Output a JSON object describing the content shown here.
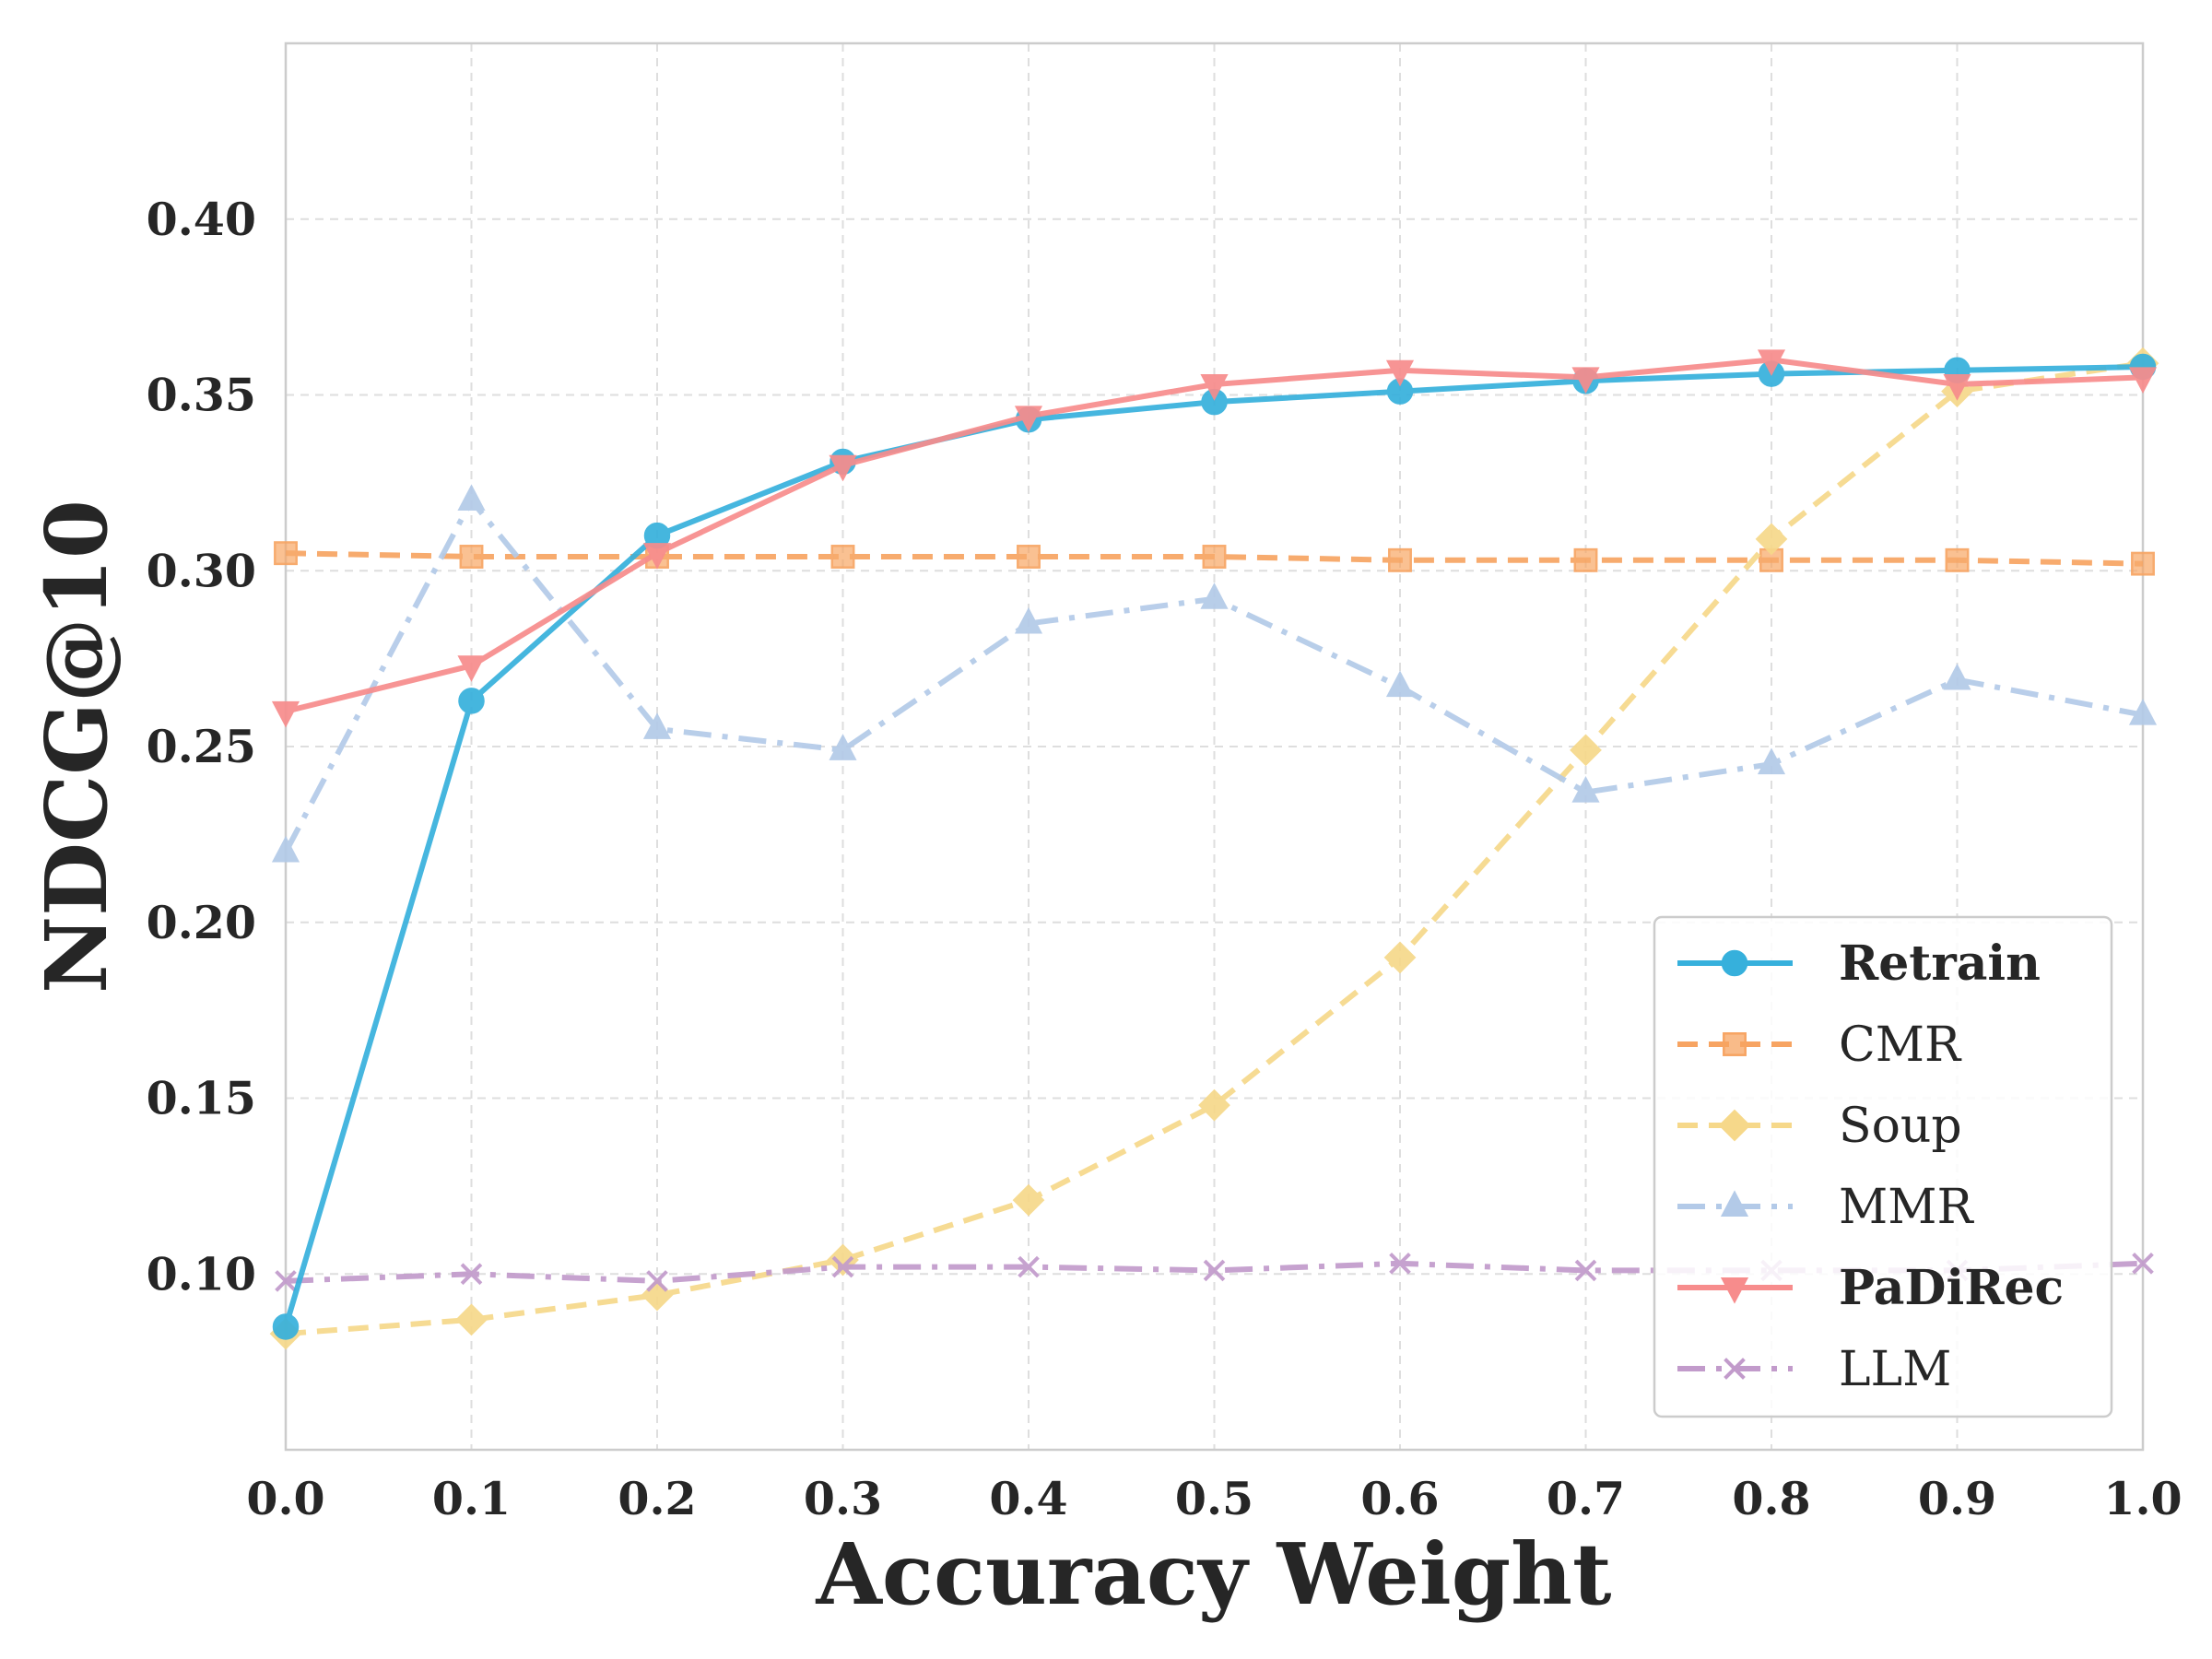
{
  "chart_data": {
    "type": "line",
    "title": "",
    "xlabel": "Accuracy Weight",
    "ylabel": "NDCG@10",
    "xlim": [
      0.0,
      1.0
    ],
    "ylim": [
      0.05,
      0.45
    ],
    "grid": true,
    "legend_position": "lower-right",
    "x": [
      0.0,
      0.1,
      0.2,
      0.3,
      0.4,
      0.5,
      0.6,
      0.7,
      0.8,
      0.9,
      1.0
    ],
    "x_tick_labels": [
      "0.0",
      "0.1",
      "0.2",
      "0.3",
      "0.4",
      "0.5",
      "0.6",
      "0.7",
      "0.8",
      "0.9",
      "1.0"
    ],
    "y_ticks": [
      0.1,
      0.15,
      0.2,
      0.25,
      0.3,
      0.35,
      0.4
    ],
    "y_tick_labels": [
      "0.10",
      "0.15",
      "0.20",
      "0.25",
      "0.30",
      "0.35",
      "0.40"
    ],
    "series": [
      {
        "name": "Retrain",
        "bold": true,
        "color": "#36b0dc",
        "dash": "solid",
        "marker": "circle",
        "values": [
          0.085,
          0.263,
          0.31,
          0.331,
          0.343,
          0.348,
          0.351,
          0.354,
          0.356,
          0.357,
          0.358
        ]
      },
      {
        "name": "CMR",
        "bold": false,
        "color": "#f7a462",
        "dash": "dashed",
        "marker": "square",
        "values": [
          0.305,
          0.304,
          0.304,
          0.304,
          0.304,
          0.304,
          0.303,
          0.303,
          0.303,
          0.303,
          0.302
        ]
      },
      {
        "name": "Soup",
        "bold": false,
        "color": "#f6d88a",
        "dash": "dashed",
        "marker": "diamond",
        "values": [
          0.083,
          0.087,
          0.094,
          0.104,
          0.121,
          0.148,
          0.19,
          0.249,
          0.309,
          0.351,
          0.359
        ]
      },
      {
        "name": "MMR",
        "bold": false,
        "color": "#b3cae8",
        "dash": "dashdot",
        "marker": "triangle-up",
        "values": [
          0.22,
          0.32,
          0.255,
          0.249,
          0.285,
          0.292,
          0.267,
          0.237,
          0.245,
          0.269,
          0.259
        ]
      },
      {
        "name": "PaDiRec",
        "bold": true,
        "color": "#f78c8c",
        "dash": "solid",
        "marker": "triangle-down",
        "values": [
          0.26,
          0.273,
          0.305,
          0.33,
          0.344,
          0.353,
          0.357,
          0.355,
          0.36,
          0.353,
          0.355
        ]
      },
      {
        "name": "LLM",
        "bold": false,
        "color": "#c29bcb",
        "dash": "dashdot",
        "marker": "x",
        "values": [
          0.098,
          0.1,
          0.098,
          0.102,
          0.102,
          0.101,
          0.103,
          0.101,
          0.101,
          0.101,
          0.103
        ]
      }
    ]
  }
}
